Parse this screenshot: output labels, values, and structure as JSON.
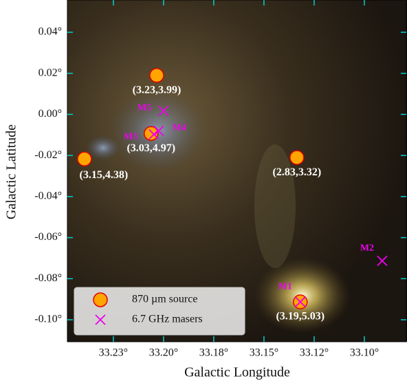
{
  "chart_data": {
    "type": "scatter",
    "x_label": "Galactic Longitude",
    "y_label": "Galactic Latitude",
    "xlim": [
      33.2479,
      33.0791
    ],
    "ylim": [
      -0.1107,
      0.0557
    ],
    "xticks": [
      {
        "value": 33.225,
        "label": "33.23°"
      },
      {
        "value": 33.2,
        "label": "33.20°"
      },
      {
        "value": 33.175,
        "label": "33.18°"
      },
      {
        "value": 33.15,
        "label": "33.15°"
      },
      {
        "value": 33.125,
        "label": "33.12°"
      },
      {
        "value": 33.1,
        "label": "33.10°"
      }
    ],
    "yticks": [
      {
        "value": 0.04,
        "label": "0.04°"
      },
      {
        "value": 0.02,
        "label": "0.02°"
      },
      {
        "value": 0,
        "label": "0.00°"
      },
      {
        "value": -0.02,
        "label": "-0.02°"
      },
      {
        "value": -0.04,
        "label": "-0.04°"
      },
      {
        "value": -0.06,
        "label": "-0.06°"
      },
      {
        "value": -0.08,
        "label": "-0.08°"
      },
      {
        "value": -0.1,
        "label": "-0.10°"
      }
    ],
    "legend": "lower left",
    "series": [
      {
        "name": "870 µm source",
        "color": "#ffa500",
        "marker": "circle",
        "x": [
          33.2034,
          33.2394,
          33.2062,
          33.1336,
          33.1319
        ],
        "values": [
          0.019,
          -0.0217,
          -0.0093,
          -0.021,
          -0.0913
        ],
        "point_labels": [
          "(3.23,3.99)",
          "(3.15,4.38)",
          "(3.03,4.97)",
          "(2.83,3.32)",
          "(3.19,5.03)"
        ]
      },
      {
        "name": "6.7 GHz masers",
        "color": "#ee00ee",
        "marker": "x",
        "x": [
          33.1319,
          33.0911,
          33.2048,
          33.2024,
          33.2
        ],
        "values": [
          -0.0913,
          -0.0713,
          -0.0097,
          -0.008,
          0.0017
        ],
        "point_labels": [
          "M1",
          "M2",
          "M3",
          "M4",
          "M5"
        ]
      }
    ]
  }
}
